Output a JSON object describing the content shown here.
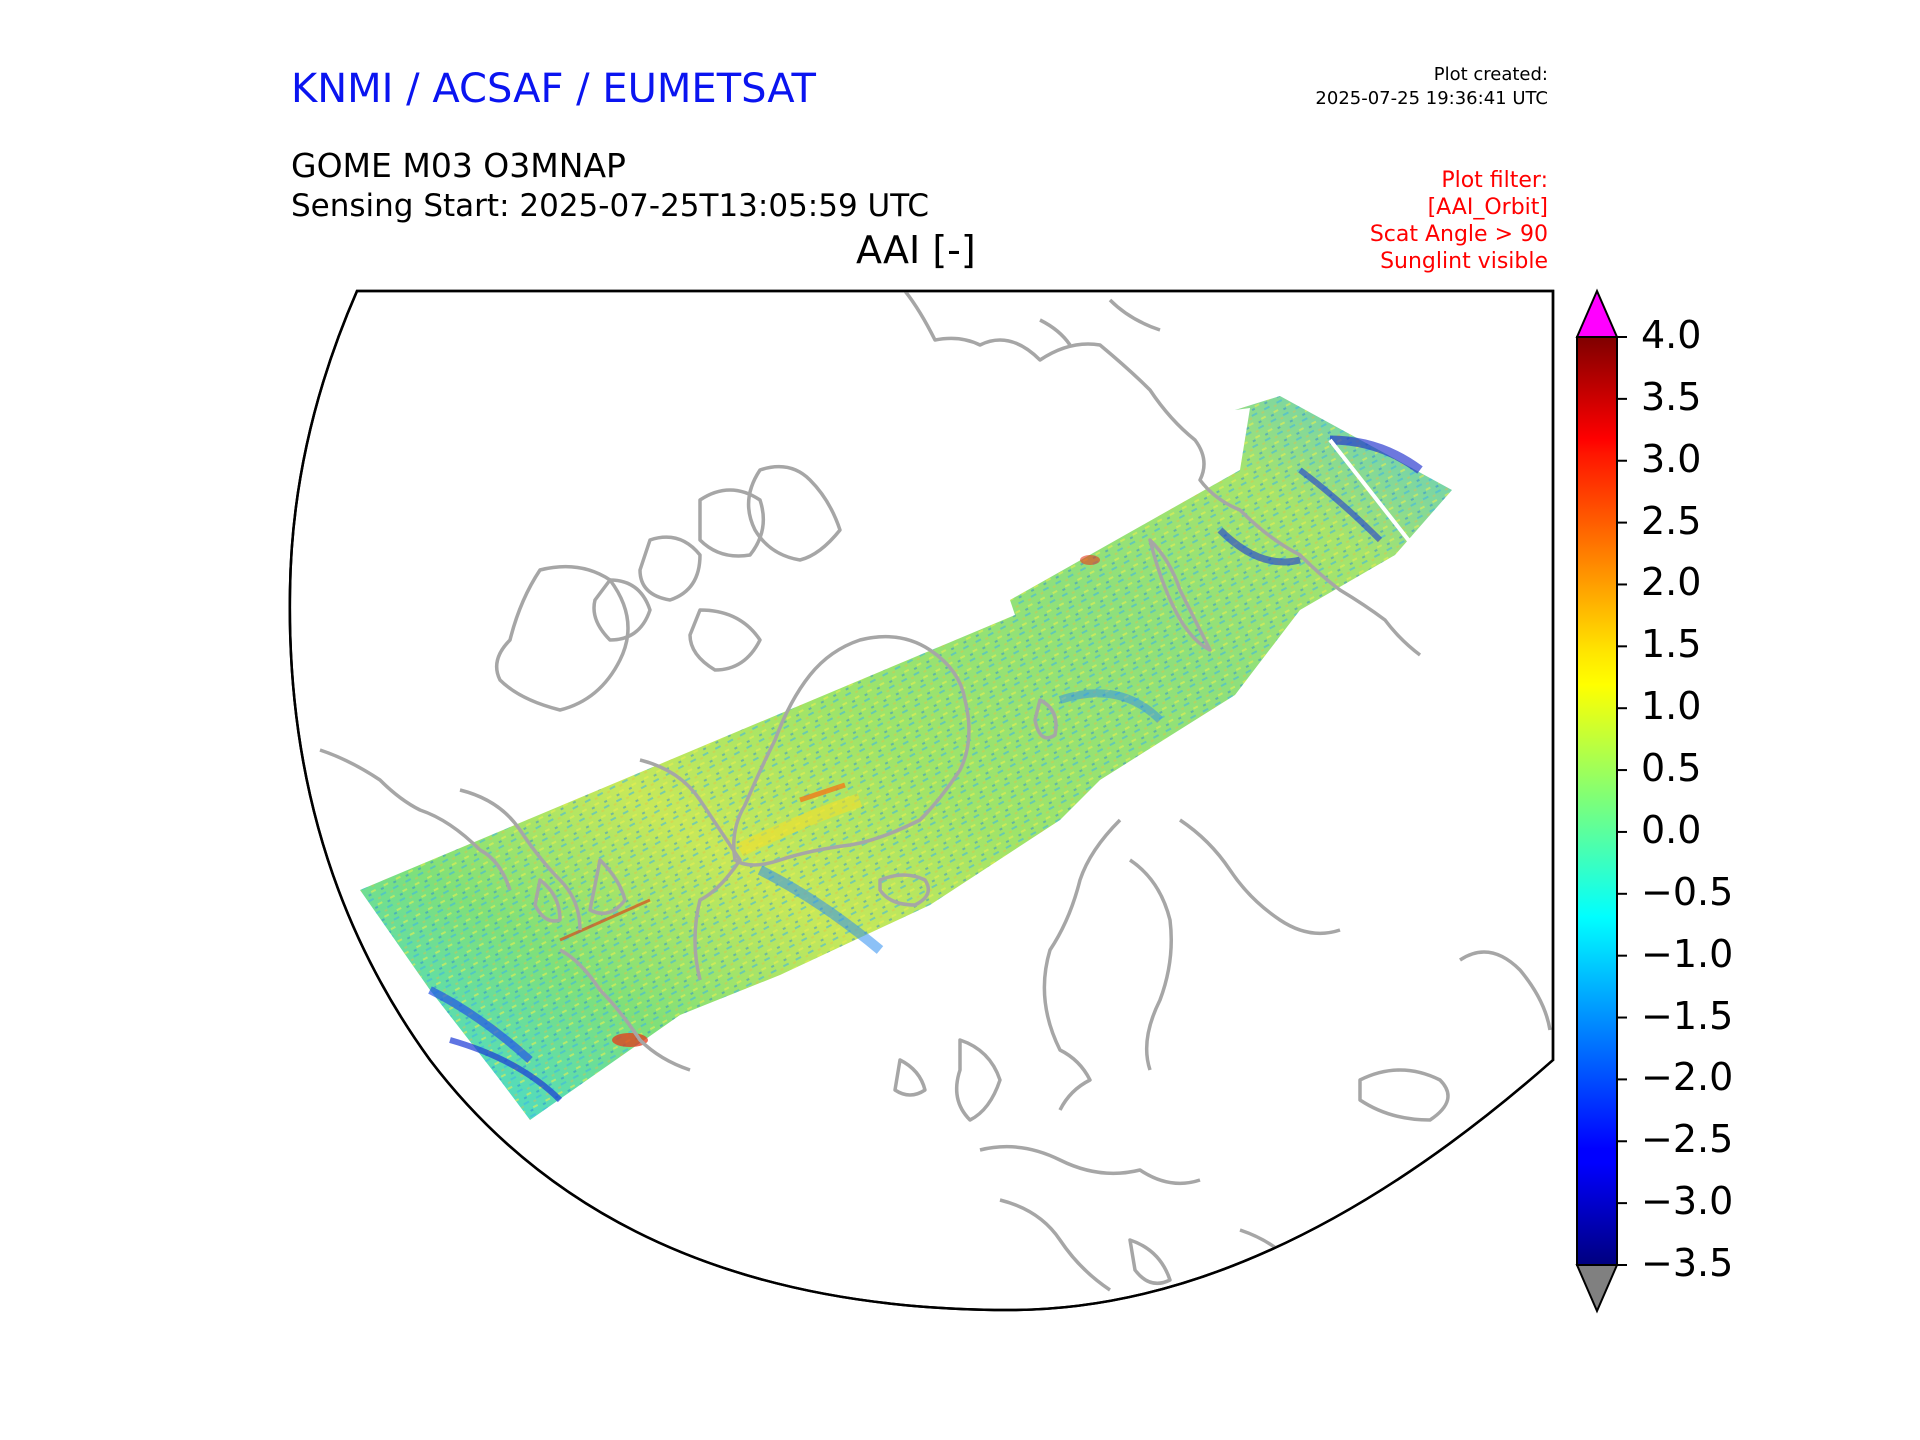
{
  "header": {
    "organization": "KNMI / ACSAF / EUMETSAT",
    "plot_created_label": "Plot created:",
    "plot_created_time": "2025-07-25 19:36:41 UTC"
  },
  "product": {
    "name": "GOME M03 O3MNAP",
    "sensing_start": "Sensing Start: 2025-07-25T13:05:59 UTC",
    "parameter": "AAI [-]"
  },
  "filters": [
    "Plot filter:",
    "[AAI_Orbit]",
    "Scat Angle > 90",
    "Sunglint visible"
  ],
  "colorbar": {
    "ticks": [
      "4.0",
      "3.5",
      "3.0",
      "2.5",
      "2.0",
      "1.5",
      "1.0",
      "0.5",
      "0.0",
      "−0.5",
      "−1.0",
      "−1.5",
      "−2.0",
      "−2.5",
      "−3.0",
      "−3.5"
    ],
    "min": -3.5,
    "max": 4.0,
    "over_color": "#ff00ff",
    "under_color": "#808080",
    "colormap": "jet"
  },
  "map": {
    "projection": "polar stereographic (north)",
    "coastline_color": "#a6a6a6",
    "region": "Northern hemisphere: North America, Greenland, Europe, Siberia",
    "swath_color_range": "mostly green/yellow (≈0 to 1.5), blue patches near −1.5 to −2.5, few red spots near 2.5"
  }
}
